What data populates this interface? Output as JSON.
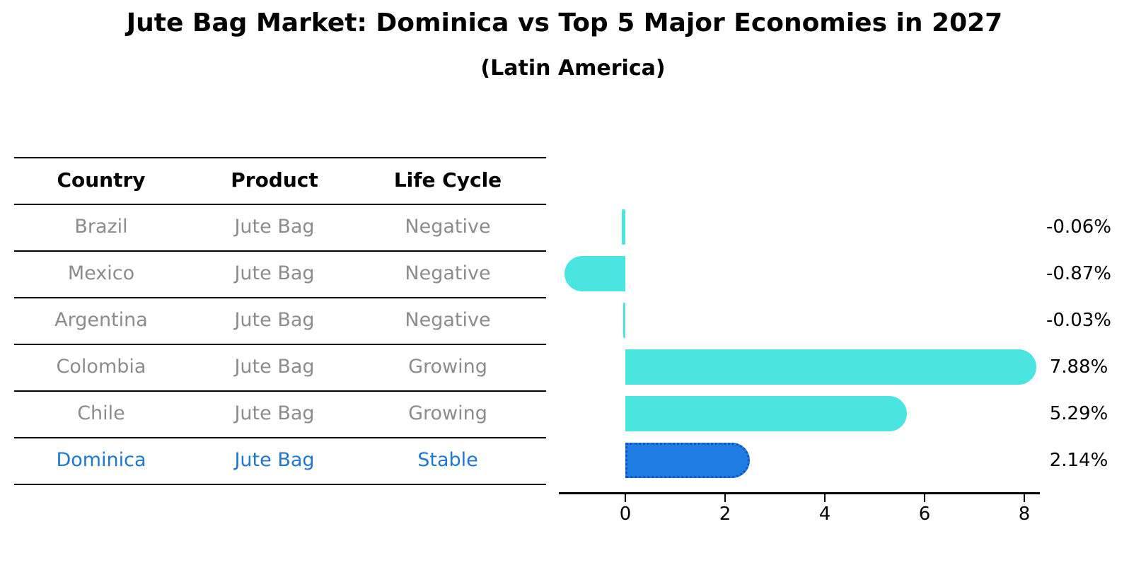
{
  "title": "Jute Bag Market: Dominica vs Top 5 Major Economies in 2027",
  "subtitle": "(Latin America)",
  "table": {
    "headers": [
      "Country",
      "Product",
      "Life Cycle"
    ],
    "rows": [
      {
        "country": "Brazil",
        "product": "Jute Bag",
        "life_cycle": "Negative",
        "highlight": false
      },
      {
        "country": "Mexico",
        "product": "Jute Bag",
        "life_cycle": "Negative",
        "highlight": false
      },
      {
        "country": "Argentina",
        "product": "Jute Bag",
        "life_cycle": "Negative",
        "highlight": false
      },
      {
        "country": "Colombia",
        "product": "Jute Bag",
        "life_cycle": "Growing",
        "highlight": false
      },
      {
        "country": "Chile",
        "product": "Jute Bag",
        "life_cycle": "Growing",
        "highlight": false
      },
      {
        "country": "Dominica",
        "product": "Jute Bag",
        "life_cycle": "Stable",
        "highlight": true
      }
    ]
  },
  "chart_data": {
    "type": "bar",
    "orientation": "horizontal",
    "title": "Jute Bag Market: Dominica vs Top 5 Major Economies in 2027",
    "subtitle": "(Latin America)",
    "categories": [
      "Brazil",
      "Mexico",
      "Argentina",
      "Colombia",
      "Chile",
      "Dominica"
    ],
    "values": [
      -0.06,
      -0.87,
      -0.03,
      7.88,
      5.29,
      2.14
    ],
    "value_labels": [
      "-0.06%",
      "-0.87%",
      "-0.03%",
      "7.88%",
      "5.29%",
      "2.14%"
    ],
    "highlight_index": 5,
    "xtick_labels": [
      "0",
      "2",
      "4",
      "6",
      "8"
    ],
    "xtick_values": [
      0,
      2,
      4,
      6,
      8
    ],
    "xlim": [
      -1.35,
      8.3
    ],
    "grid": false,
    "legend": "none",
    "bar_style": "rounded-end-caps"
  },
  "colors": {
    "bar_default": "#4AE5E1",
    "bar_highlight": "#1E7CE2",
    "bar_highlight_border": "#1356C0",
    "highlight_text": "#1E77D3",
    "row_text": "#8C8C8C",
    "header_text": "#000000",
    "line": "#000000"
  }
}
